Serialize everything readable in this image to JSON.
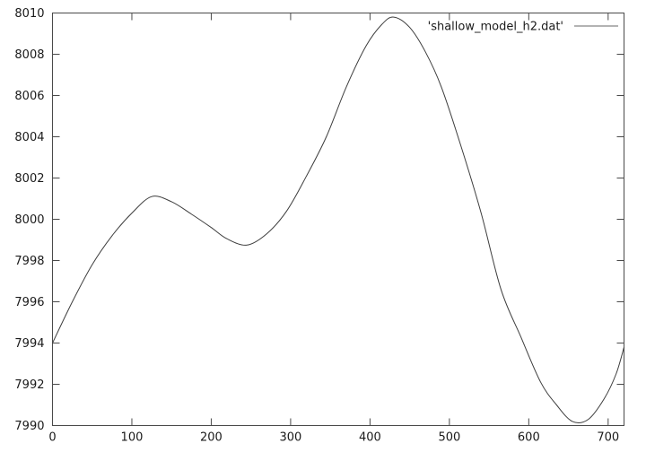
{
  "figure": {
    "background": "#ffffff"
  },
  "chart_data": {
    "type": "line",
    "title": "",
    "xlabel": "",
    "ylabel": "",
    "xlim": [
      0,
      720
    ],
    "ylim": [
      7990,
      8010
    ],
    "xticks": [
      0,
      100,
      200,
      300,
      400,
      500,
      600,
      700
    ],
    "yticks": [
      7990,
      7992,
      7994,
      7996,
      7998,
      8000,
      8002,
      8004,
      8006,
      8008,
      8010
    ],
    "grid": false,
    "legend_position": "top-right-inside",
    "axis_color": "#4a4a4a",
    "text_color": "#1a1a1a",
    "series": [
      {
        "name": "'shallow_model_h2.dat'",
        "color": "#3d3d3d",
        "legend_sample_color": "#b3b3b3",
        "points": [
          [
            0,
            7994.0
          ],
          [
            25,
            7996.0
          ],
          [
            50,
            7997.8
          ],
          [
            75,
            7999.2
          ],
          [
            100,
            8000.3
          ],
          [
            125,
            8001.1
          ],
          [
            150,
            8000.85
          ],
          [
            175,
            8000.25
          ],
          [
            200,
            7999.6
          ],
          [
            220,
            7999.05
          ],
          [
            245,
            7998.75
          ],
          [
            270,
            7999.3
          ],
          [
            295,
            8000.4
          ],
          [
            320,
            8002.1
          ],
          [
            345,
            8004.0
          ],
          [
            370,
            8006.4
          ],
          [
            395,
            8008.4
          ],
          [
            415,
            8009.45
          ],
          [
            430,
            8009.8
          ],
          [
            450,
            8009.3
          ],
          [
            470,
            8008.1
          ],
          [
            490,
            8006.4
          ],
          [
            515,
            8003.5
          ],
          [
            540,
            8000.3
          ],
          [
            565,
            7996.6
          ],
          [
            590,
            7994.3
          ],
          [
            615,
            7992.1
          ],
          [
            635,
            7991.0
          ],
          [
            655,
            7990.2
          ],
          [
            675,
            7990.3
          ],
          [
            695,
            7991.3
          ],
          [
            710,
            7992.5
          ],
          [
            720,
            7993.8
          ]
        ]
      }
    ]
  }
}
